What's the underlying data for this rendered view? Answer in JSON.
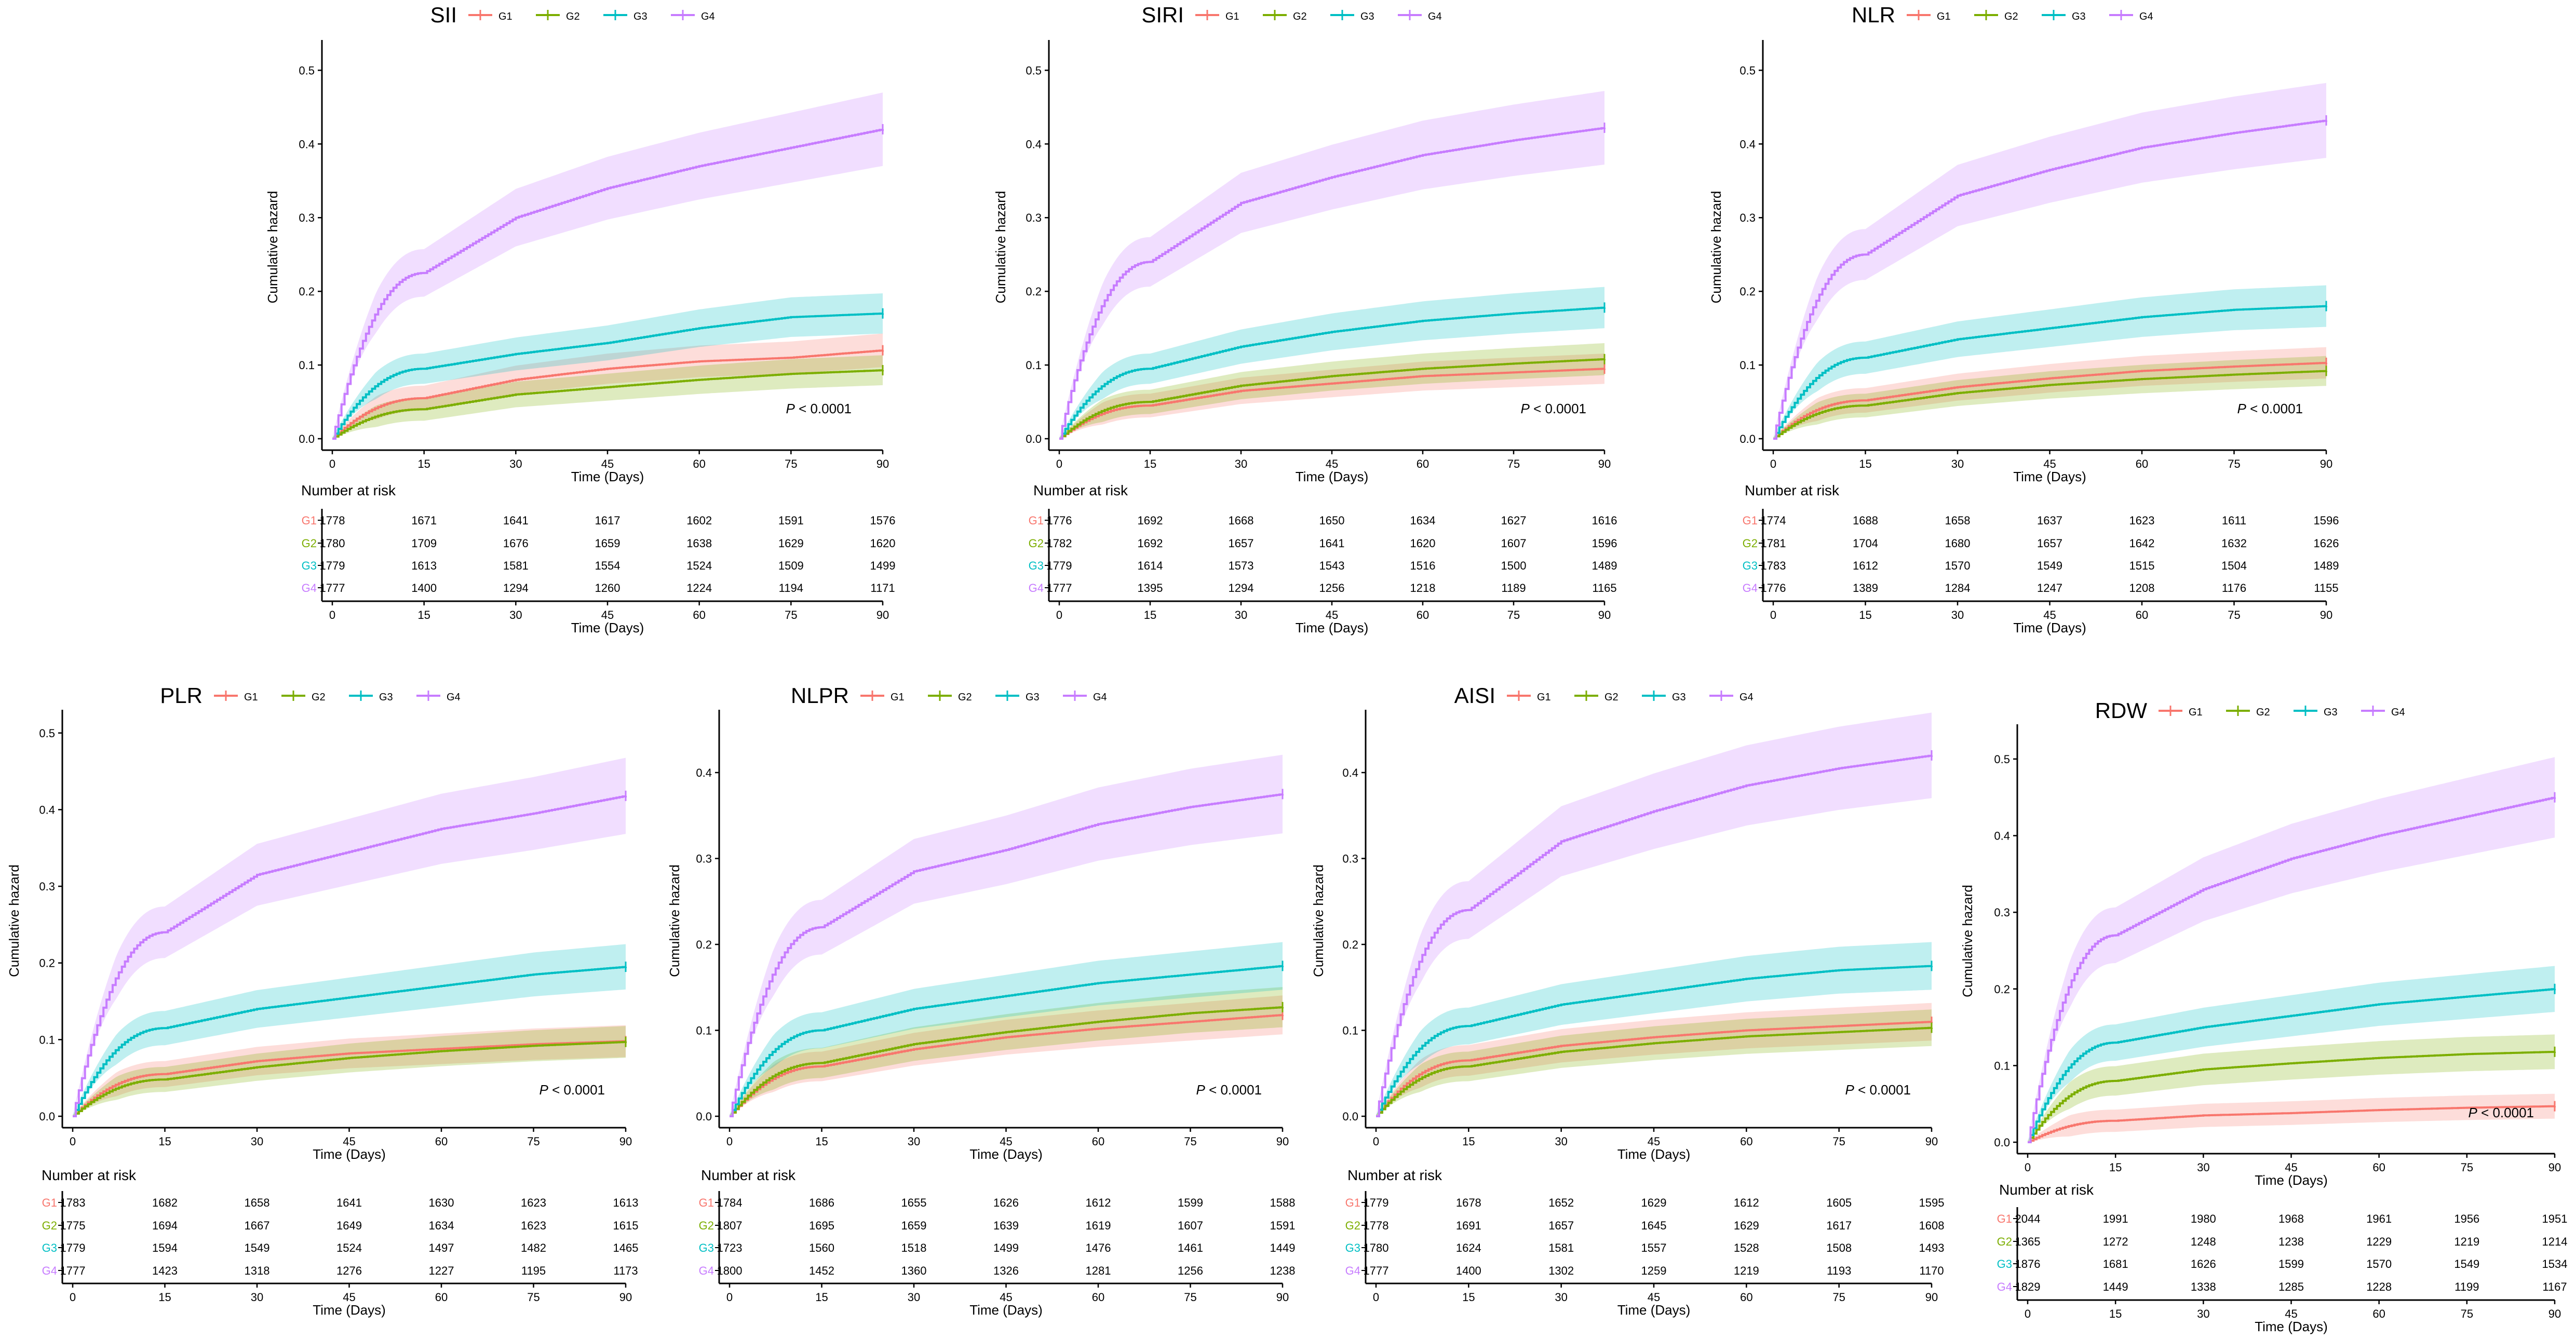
{
  "colors": {
    "G1": "#F8766D",
    "G2": "#7CAE00",
    "G3": "#00BFC4",
    "G4": "#C77CFF",
    "axis": "#000000"
  },
  "legend_labels": [
    "G1",
    "G2",
    "G3",
    "G4"
  ],
  "group_labels": [
    "G1",
    "G2",
    "G3",
    "G4"
  ],
  "y_axis_label": "Cumulative hazard",
  "x_axis_label": "Time (Days)",
  "risk_title": "Number at risk",
  "pvalue_p": "P",
  "pvalue_rest": "< 0.0001",
  "x_ticks": [
    "0",
    "15",
    "30",
    "45",
    "60",
    "75",
    "90"
  ],
  "chart_data": [
    {
      "type": "line",
      "title": "SII",
      "xlabel": "Time (Days)",
      "ylabel": "Cumulative hazard",
      "xlim": [
        0,
        90
      ],
      "ylim": [
        0,
        0.5
      ],
      "y_ticks": [
        "0.0",
        "0.1",
        "0.2",
        "0.3",
        "0.4",
        "0.5"
      ],
      "x": [
        0,
        15,
        30,
        45,
        60,
        75,
        90
      ],
      "series": [
        {
          "name": "G1",
          "values": [
            0,
            0.055,
            0.08,
            0.095,
            0.105,
            0.11,
            0.12
          ]
        },
        {
          "name": "G2",
          "values": [
            0,
            0.04,
            0.06,
            0.07,
            0.08,
            0.088,
            0.093
          ]
        },
        {
          "name": "G3",
          "values": [
            0,
            0.095,
            0.115,
            0.13,
            0.15,
            0.165,
            0.17
          ]
        },
        {
          "name": "G4",
          "values": [
            0,
            0.225,
            0.3,
            0.34,
            0.37,
            0.395,
            0.42
          ]
        }
      ],
      "risk_table": [
        [
          "1778",
          "1671",
          "1641",
          "1617",
          "1602",
          "1591",
          "1576"
        ],
        [
          "1780",
          "1709",
          "1676",
          "1659",
          "1638",
          "1629",
          "1620"
        ],
        [
          "1779",
          "1613",
          "1581",
          "1554",
          "1524",
          "1509",
          "1499"
        ],
        [
          "1777",
          "1400",
          "1294",
          "1260",
          "1224",
          "1194",
          "1171"
        ]
      ]
    },
    {
      "type": "line",
      "title": "SIRI",
      "xlabel": "Time (Days)",
      "ylabel": "Cumulative hazard",
      "xlim": [
        0,
        90
      ],
      "ylim": [
        0,
        0.5
      ],
      "y_ticks": [
        "0.0",
        "0.1",
        "0.2",
        "0.3",
        "0.4",
        "0.5"
      ],
      "x": [
        0,
        15,
        30,
        45,
        60,
        75,
        90
      ],
      "series": [
        {
          "name": "G1",
          "values": [
            0,
            0.045,
            0.065,
            0.075,
            0.085,
            0.09,
            0.095
          ]
        },
        {
          "name": "G2",
          "values": [
            0,
            0.05,
            0.072,
            0.085,
            0.095,
            0.102,
            0.108
          ]
        },
        {
          "name": "G3",
          "values": [
            0,
            0.095,
            0.125,
            0.145,
            0.16,
            0.17,
            0.178
          ]
        },
        {
          "name": "G4",
          "values": [
            0,
            0.24,
            0.32,
            0.355,
            0.385,
            0.405,
            0.422
          ]
        }
      ],
      "risk_table": [
        [
          "1776",
          "1692",
          "1668",
          "1650",
          "1634",
          "1627",
          "1616"
        ],
        [
          "1782",
          "1692",
          "1657",
          "1641",
          "1620",
          "1607",
          "1596"
        ],
        [
          "1779",
          "1614",
          "1573",
          "1543",
          "1516",
          "1500",
          "1489"
        ],
        [
          "1777",
          "1395",
          "1294",
          "1256",
          "1218",
          "1189",
          "1165"
        ]
      ]
    },
    {
      "type": "line",
      "title": "NLR",
      "xlabel": "Time (Days)",
      "ylabel": "Cumulative hazard",
      "xlim": [
        0,
        90
      ],
      "ylim": [
        0,
        0.5
      ],
      "y_ticks": [
        "0.0",
        "0.1",
        "0.2",
        "0.3",
        "0.4",
        "0.5"
      ],
      "x": [
        0,
        15,
        30,
        45,
        60,
        75,
        90
      ],
      "series": [
        {
          "name": "G1",
          "values": [
            0,
            0.052,
            0.07,
            0.082,
            0.092,
            0.098,
            0.103
          ]
        },
        {
          "name": "G2",
          "values": [
            0,
            0.045,
            0.062,
            0.073,
            0.081,
            0.087,
            0.092
          ]
        },
        {
          "name": "G3",
          "values": [
            0,
            0.11,
            0.135,
            0.15,
            0.165,
            0.175,
            0.18
          ]
        },
        {
          "name": "G4",
          "values": [
            0,
            0.25,
            0.33,
            0.365,
            0.395,
            0.415,
            0.432
          ]
        }
      ],
      "risk_table": [
        [
          "1774",
          "1688",
          "1658",
          "1637",
          "1623",
          "1611",
          "1596"
        ],
        [
          "1781",
          "1704",
          "1680",
          "1657",
          "1642",
          "1632",
          "1626"
        ],
        [
          "1783",
          "1612",
          "1570",
          "1549",
          "1515",
          "1504",
          "1489"
        ],
        [
          "1776",
          "1389",
          "1284",
          "1247",
          "1208",
          "1176",
          "1155"
        ]
      ]
    },
    {
      "type": "line",
      "title": "PLR",
      "xlabel": "Time (Days)",
      "ylabel": "Cumulative hazard",
      "xlim": [
        0,
        90
      ],
      "ylim": [
        0,
        0.5
      ],
      "y_ticks": [
        "0.0",
        "0.1",
        "0.2",
        "0.3",
        "0.4",
        "0.5"
      ],
      "x": [
        0,
        15,
        30,
        45,
        60,
        75,
        90
      ],
      "series": [
        {
          "name": "G1",
          "values": [
            0,
            0.055,
            0.072,
            0.082,
            0.088,
            0.094,
            0.098
          ]
        },
        {
          "name": "G2",
          "values": [
            0,
            0.048,
            0.064,
            0.076,
            0.085,
            0.092,
            0.097
          ]
        },
        {
          "name": "G3",
          "values": [
            0,
            0.115,
            0.14,
            0.155,
            0.17,
            0.185,
            0.195
          ]
        },
        {
          "name": "G4",
          "values": [
            0,
            0.24,
            0.315,
            0.345,
            0.375,
            0.395,
            0.418
          ]
        }
      ],
      "risk_table": [
        [
          "1783",
          "1682",
          "1658",
          "1641",
          "1630",
          "1623",
          "1613"
        ],
        [
          "1775",
          "1694",
          "1667",
          "1649",
          "1634",
          "1623",
          "1615"
        ],
        [
          "1779",
          "1594",
          "1549",
          "1524",
          "1497",
          "1482",
          "1465"
        ],
        [
          "1777",
          "1423",
          "1318",
          "1276",
          "1227",
          "1195",
          "1173"
        ]
      ]
    },
    {
      "type": "line",
      "title": "NLPR",
      "xlabel": "Time (Days)",
      "ylabel": "Cumulative hazard",
      "xlim": [
        0,
        90
      ],
      "ylim": [
        0,
        0.45
      ],
      "y_ticks": [
        "0.0",
        "0.1",
        "0.2",
        "0.3",
        "0.4"
      ],
      "x": [
        0,
        15,
        30,
        45,
        60,
        75,
        90
      ],
      "series": [
        {
          "name": "G1",
          "values": [
            0,
            0.058,
            0.078,
            0.092,
            0.102,
            0.11,
            0.118
          ]
        },
        {
          "name": "G2",
          "values": [
            0,
            0.062,
            0.084,
            0.098,
            0.11,
            0.12,
            0.127
          ]
        },
        {
          "name": "G3",
          "values": [
            0,
            0.1,
            0.125,
            0.14,
            0.155,
            0.165,
            0.175
          ]
        },
        {
          "name": "G4",
          "values": [
            0,
            0.22,
            0.285,
            0.31,
            0.34,
            0.36,
            0.375
          ]
        }
      ],
      "risk_table": [
        [
          "1784",
          "1686",
          "1655",
          "1626",
          "1612",
          "1599",
          "1588"
        ],
        [
          "1807",
          "1695",
          "1659",
          "1639",
          "1619",
          "1607",
          "1591"
        ],
        [
          "1723",
          "1560",
          "1518",
          "1499",
          "1476",
          "1461",
          "1449"
        ],
        [
          "1800",
          "1452",
          "1360",
          "1326",
          "1281",
          "1256",
          "1238"
        ]
      ]
    },
    {
      "type": "line",
      "title": "AISI",
      "xlabel": "Time (Days)",
      "ylabel": "Cumulative hazard",
      "xlim": [
        0,
        90
      ],
      "ylim": [
        0,
        0.45
      ],
      "y_ticks": [
        "0.0",
        "0.1",
        "0.2",
        "0.3",
        "0.4"
      ],
      "x": [
        0,
        15,
        30,
        45,
        60,
        75,
        90
      ],
      "series": [
        {
          "name": "G1",
          "values": [
            0,
            0.065,
            0.082,
            0.092,
            0.1,
            0.105,
            0.11
          ]
        },
        {
          "name": "G2",
          "values": [
            0,
            0.058,
            0.075,
            0.085,
            0.093,
            0.098,
            0.103
          ]
        },
        {
          "name": "G3",
          "values": [
            0,
            0.105,
            0.13,
            0.145,
            0.16,
            0.17,
            0.175
          ]
        },
        {
          "name": "G4",
          "values": [
            0,
            0.24,
            0.32,
            0.355,
            0.385,
            0.405,
            0.42
          ]
        }
      ],
      "risk_table": [
        [
          "1779",
          "1678",
          "1652",
          "1629",
          "1612",
          "1605",
          "1595"
        ],
        [
          "1778",
          "1691",
          "1657",
          "1645",
          "1629",
          "1617",
          "1608"
        ],
        [
          "1780",
          "1624",
          "1581",
          "1557",
          "1528",
          "1508",
          "1493"
        ],
        [
          "1777",
          "1400",
          "1302",
          "1259",
          "1219",
          "1193",
          "1170"
        ]
      ]
    },
    {
      "type": "line",
      "title": "RDW",
      "xlabel": "Time (Days)",
      "ylabel": "Cumulative hazard",
      "xlim": [
        0,
        90
      ],
      "ylim": [
        0,
        0.5
      ],
      "y_ticks": [
        "0.0",
        "0.1",
        "0.2",
        "0.3",
        "0.4",
        "0.5"
      ],
      "x": [
        0,
        15,
        30,
        45,
        60,
        75,
        90
      ],
      "series": [
        {
          "name": "G1",
          "values": [
            0,
            0.028,
            0.035,
            0.038,
            0.042,
            0.045,
            0.047
          ]
        },
        {
          "name": "G2",
          "values": [
            0,
            0.08,
            0.095,
            0.103,
            0.11,
            0.115,
            0.118
          ]
        },
        {
          "name": "G3",
          "values": [
            0,
            0.13,
            0.15,
            0.165,
            0.18,
            0.19,
            0.2
          ]
        },
        {
          "name": "G4",
          "values": [
            0,
            0.27,
            0.33,
            0.37,
            0.4,
            0.425,
            0.45
          ]
        }
      ],
      "risk_table": [
        [
          "2044",
          "1991",
          "1980",
          "1968",
          "1961",
          "1956",
          "1951"
        ],
        [
          "1365",
          "1272",
          "1248",
          "1238",
          "1229",
          "1219",
          "1214"
        ],
        [
          "1876",
          "1681",
          "1626",
          "1599",
          "1570",
          "1549",
          "1534"
        ],
        [
          "1829",
          "1449",
          "1338",
          "1285",
          "1228",
          "1199",
          "1167"
        ]
      ]
    }
  ]
}
